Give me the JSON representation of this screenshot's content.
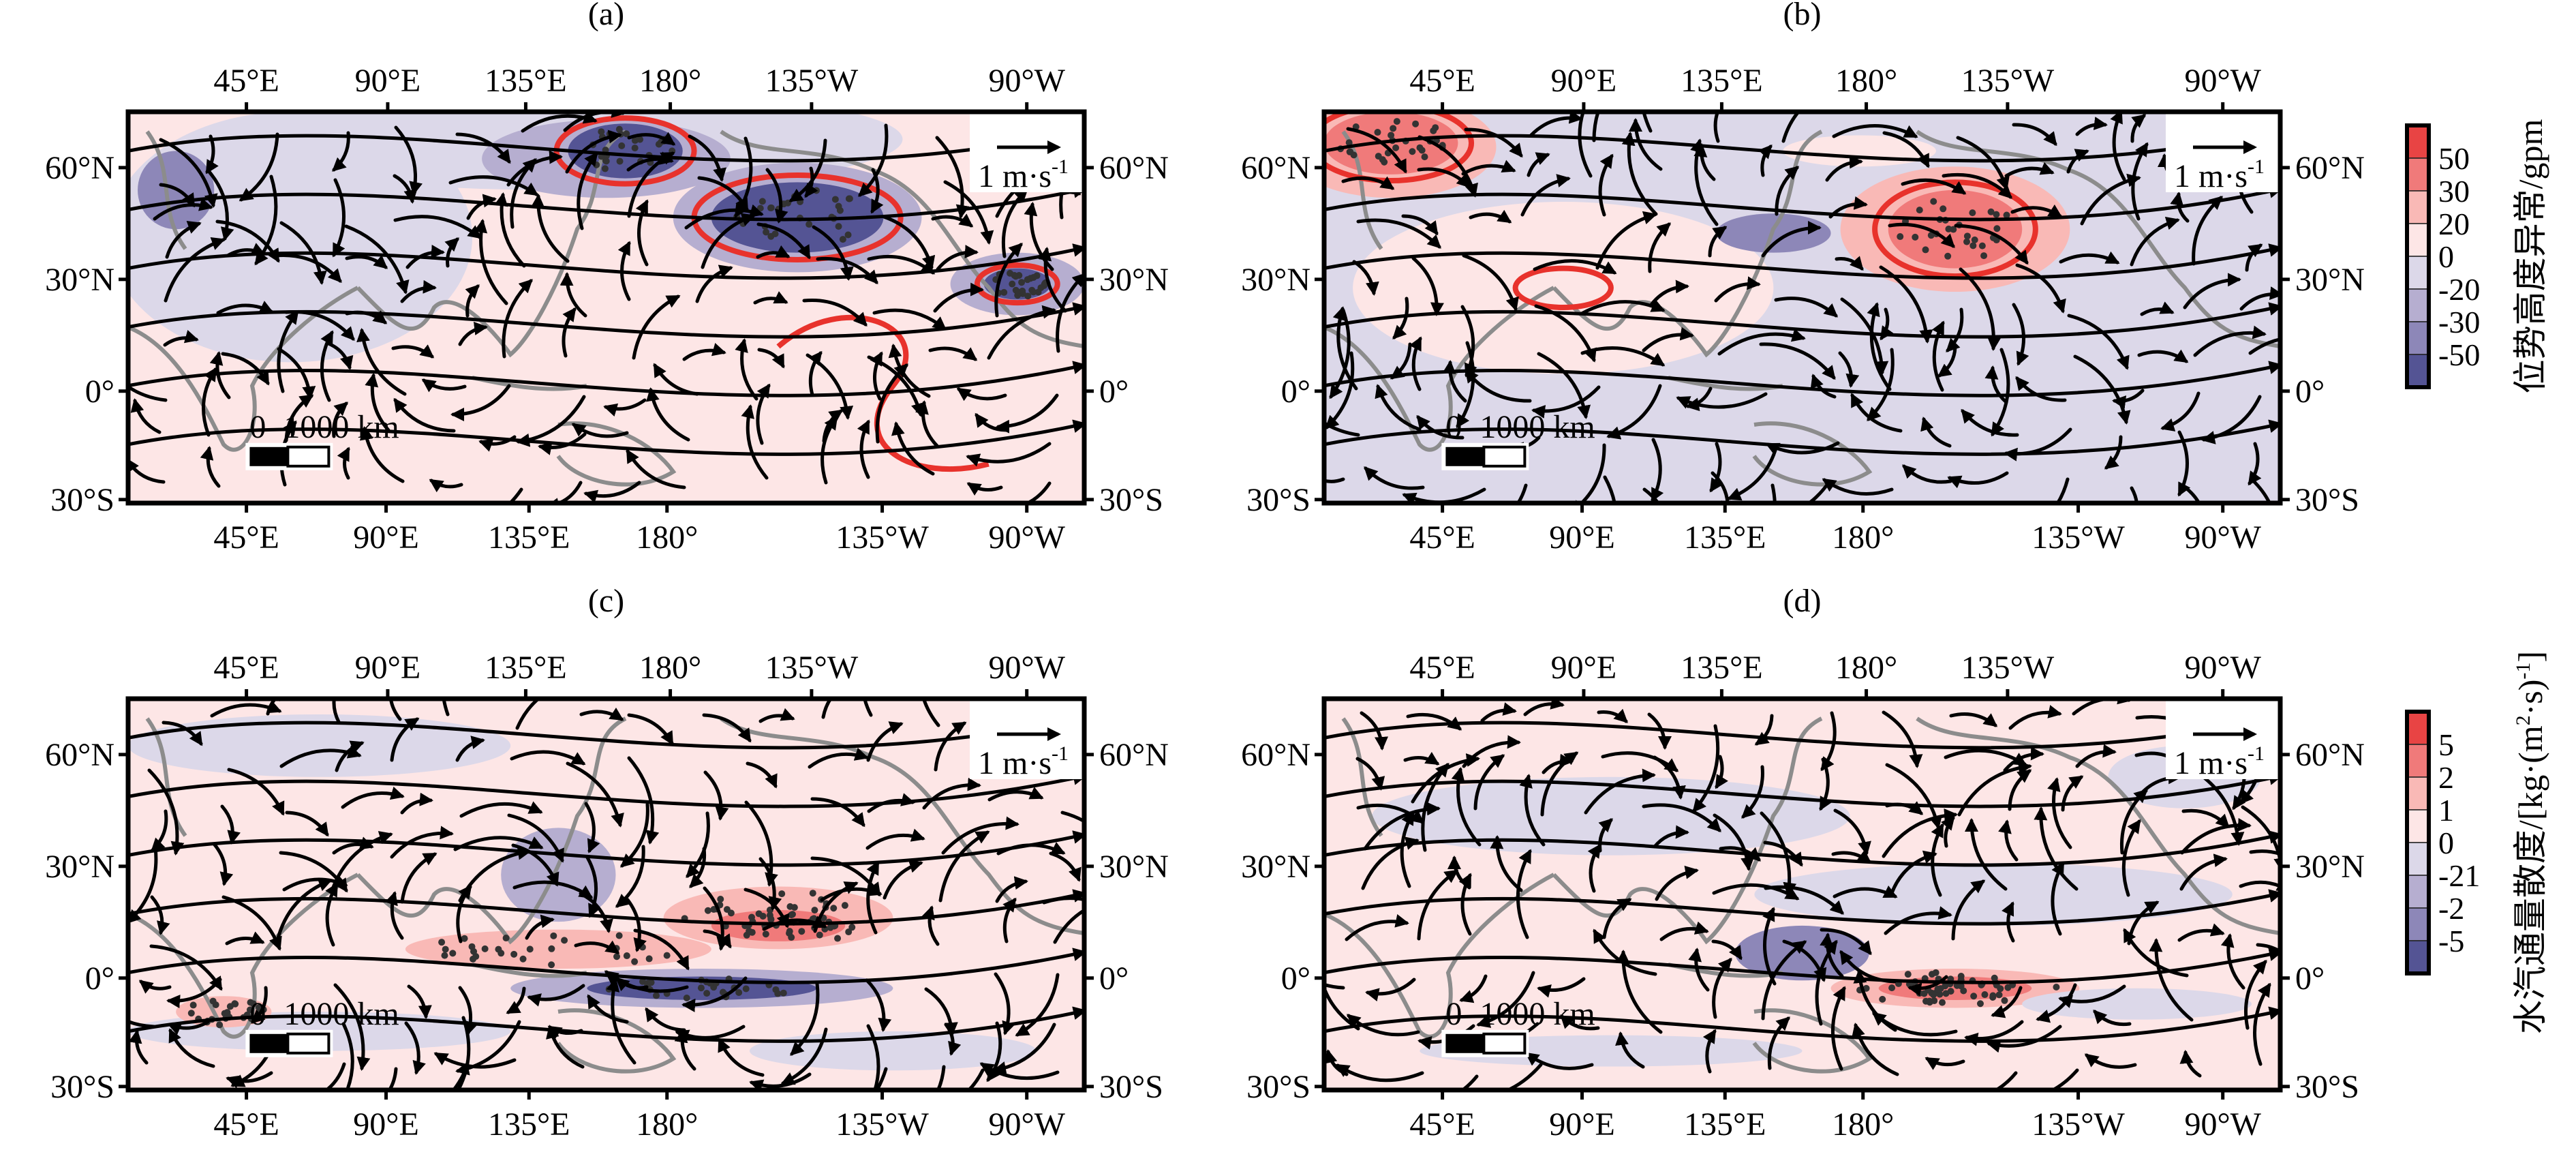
{
  "figure": {
    "panels": [
      {
        "id": "a",
        "title": "(a)",
        "colorbar": "height"
      },
      {
        "id": "b",
        "title": "(b)",
        "colorbar": "height"
      },
      {
        "id": "c",
        "title": "(c)",
        "colorbar": "moisture"
      },
      {
        "id": "d",
        "title": "(d)",
        "colorbar": "moisture"
      }
    ],
    "lon_ticks_top": [
      "45°E",
      "90°E",
      "135°E",
      "180°",
      "135°W",
      "90°W"
    ],
    "lon_ticks_bottom": [
      "45°E",
      "90°E",
      "135°E",
      "180°",
      "135°W",
      "90°W"
    ],
    "lat_ticks": [
      "60°N",
      "30°N",
      "0°",
      "30°S"
    ],
    "vector_legend": {
      "label": "1 m·s",
      "exponent": "-1"
    },
    "scale_bar": {
      "zero": "0",
      "label": "1000 km"
    },
    "colorbars": {
      "height": {
        "title": "位势高度异常/gpm",
        "labels": [
          "50",
          "30",
          "20",
          "0",
          "-20",
          "-30",
          "-50"
        ],
        "colors": [
          "#e84444",
          "#f07a7a",
          "#f9b9b6",
          "#fde6e6",
          "#dcd8e9",
          "#b6aed0",
          "#8d87b8",
          "#545494"
        ]
      },
      "moisture": {
        "title": "水汽通量散度/[kg·(m",
        "sup1": "2",
        "mid": "·s)",
        "sup2": "-1",
        "end": "]",
        "labels": [
          "5",
          "2",
          "1",
          "0",
          "-21",
          "-2",
          "-5"
        ],
        "colors": [
          "#e84444",
          "#f07a7a",
          "#f9b9b6",
          "#fde6e6",
          "#dcd8e9",
          "#b6aed0",
          "#8d87b8",
          "#545494"
        ]
      }
    },
    "colors": {
      "contour": "#e8322c",
      "streamline": "#000000",
      "coastline": "#8c8c8c",
      "stipple": "#333333"
    }
  }
}
